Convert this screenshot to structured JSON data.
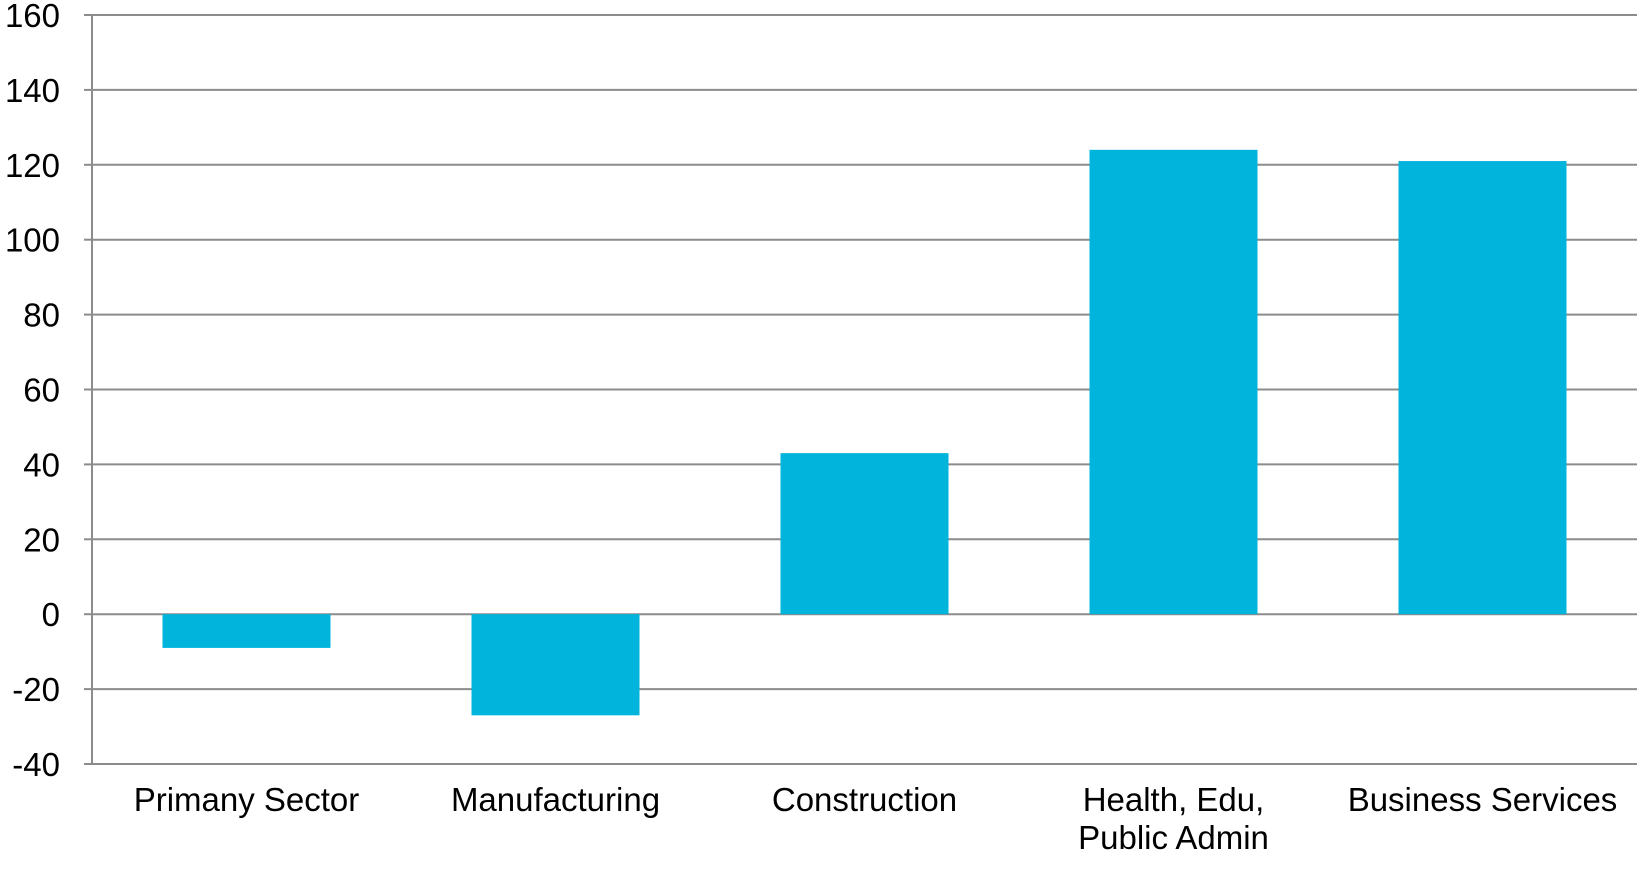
{
  "chart_data": {
    "type": "bar",
    "title": "",
    "xlabel": "",
    "ylabel": "",
    "categories": [
      "Primany Sector",
      "Manufacturing",
      "Construction",
      "Health, Edu, Public Admin",
      "Business Services"
    ],
    "category_label_lines": [
      [
        "Primany Sector"
      ],
      [
        "Manufacturing"
      ],
      [
        "Construction"
      ],
      [
        "Health, Edu,",
        "Public Admin"
      ],
      [
        "Business Services"
      ]
    ],
    "values": [
      -9,
      -27,
      43,
      124,
      121
    ],
    "ylim": [
      -40,
      160
    ],
    "yticks": [
      -40,
      -20,
      0,
      20,
      40,
      60,
      80,
      100,
      120,
      140,
      160
    ],
    "grid": true,
    "legend": "none",
    "bar_color": "#00b4dc",
    "grid_color": "#8c8c8c"
  }
}
